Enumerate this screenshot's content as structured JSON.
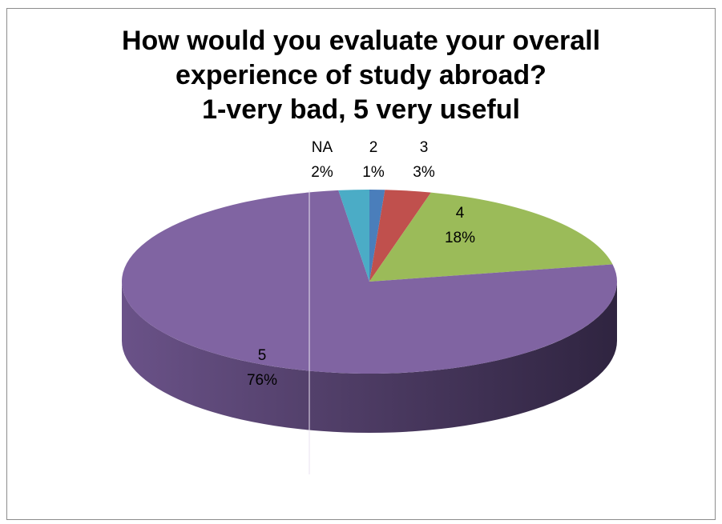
{
  "chart_data": {
    "type": "pie",
    "title_lines": [
      "How would you evaluate your overall",
      "experience of study abroad?",
      "1-very bad, 5 very useful"
    ],
    "slices": [
      {
        "name": "2",
        "value": 1,
        "label": "1%",
        "color": "#4a7ebb"
      },
      {
        "name": "3",
        "value": 3,
        "label": "3%",
        "color": "#c0504d"
      },
      {
        "name": "4",
        "value": 18,
        "label": "18%",
        "color": "#9bbb59"
      },
      {
        "name": "5",
        "value": 76,
        "label": "76%",
        "color": "#8064a2"
      },
      {
        "name": "NA",
        "value": 2,
        "label": "2%",
        "color": "#4bacc6"
      }
    ],
    "style": "3d-pie"
  }
}
